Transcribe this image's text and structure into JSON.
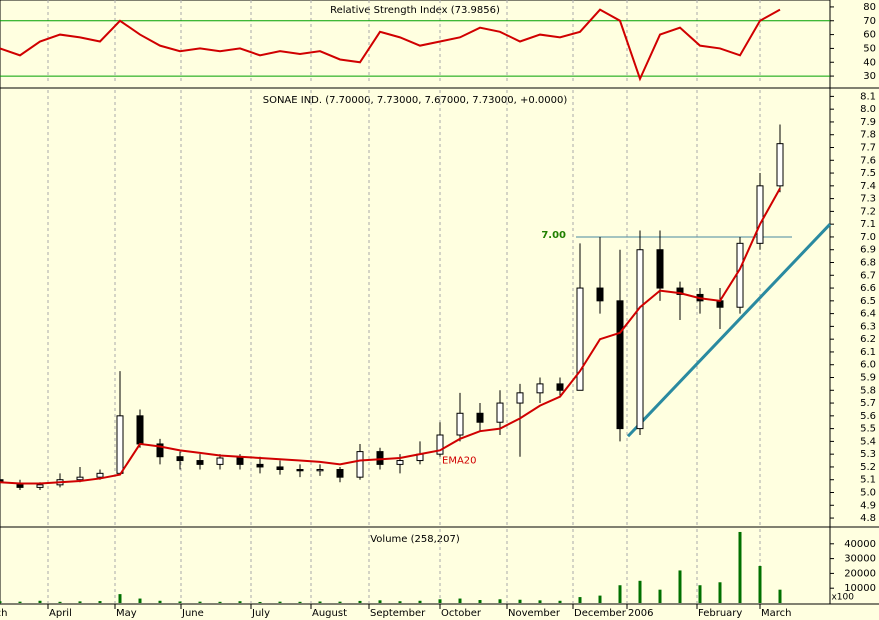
{
  "chart_data": [
    {
      "type": "line",
      "title": "Relative Strength Index (73.9856)",
      "x": [
        0,
        5,
        10,
        15,
        20,
        25,
        30,
        35,
        40,
        45,
        50,
        55,
        60,
        65,
        70,
        75,
        80,
        85,
        90,
        95,
        100,
        105,
        110,
        115,
        120,
        125,
        130,
        135,
        140,
        145,
        150,
        155,
        160,
        165,
        170,
        175,
        180,
        185,
        190,
        195
      ],
      "values": [
        50,
        45,
        55,
        60,
        58,
        55,
        70,
        60,
        52,
        48,
        50,
        48,
        50,
        45,
        48,
        46,
        48,
        42,
        40,
        62,
        58,
        52,
        55,
        58,
        65,
        62,
        55,
        60,
        58,
        62,
        78,
        70,
        28,
        60,
        65,
        52,
        50,
        45,
        70,
        78
      ],
      "color": "#d00000",
      "xlim": [
        0,
        207.5
      ],
      "ylim": [
        25,
        85
      ],
      "yticks": [
        30,
        40,
        50,
        60,
        70,
        80
      ],
      "hlines": [
        30,
        70
      ],
      "hline_color": "#00a000"
    },
    {
      "type": "candlestick",
      "title": "SONAE IND. (7.70000, 7.73000, 7.67000, 7.73000, +0.0000)",
      "x": [
        0,
        5,
        10,
        15,
        20,
        25,
        30,
        35,
        40,
        45,
        50,
        55,
        60,
        65,
        70,
        75,
        80,
        85,
        90,
        95,
        100,
        105,
        110,
        115,
        120,
        125,
        130,
        135,
        140,
        145,
        150,
        155,
        160,
        165,
        170,
        175,
        180,
        185,
        190,
        195
      ],
      "open": [
        5.1,
        5.07,
        5.04,
        5.06,
        5.1,
        5.12,
        5.15,
        5.6,
        5.38,
        5.28,
        5.25,
        5.22,
        5.27,
        5.22,
        5.2,
        5.18,
        5.17,
        5.18,
        5.12,
        5.32,
        5.22,
        5.25,
        5.3,
        5.45,
        5.62,
        5.55,
        5.7,
        5.78,
        5.85,
        5.8,
        6.6,
        6.5,
        5.5,
        6.9,
        6.6,
        6.55,
        6.5,
        6.45,
        6.95,
        7.4
      ],
      "high": [
        5.13,
        5.1,
        5.08,
        5.15,
        5.2,
        5.18,
        5.95,
        5.65,
        5.42,
        5.32,
        5.3,
        5.3,
        5.3,
        5.28,
        5.25,
        5.22,
        5.22,
        5.2,
        5.38,
        5.35,
        5.3,
        5.4,
        5.55,
        5.78,
        5.7,
        5.8,
        5.85,
        5.9,
        5.9,
        6.95,
        7.0,
        6.9,
        7.05,
        7.05,
        6.65,
        6.6,
        6.6,
        7.0,
        7.5,
        7.88
      ],
      "low": [
        5.05,
        5.02,
        5.02,
        5.04,
        5.08,
        5.1,
        5.15,
        5.35,
        5.22,
        5.18,
        5.18,
        5.18,
        5.18,
        5.15,
        5.14,
        5.12,
        5.13,
        5.08,
        5.1,
        5.18,
        5.15,
        5.22,
        5.28,
        5.4,
        5.48,
        5.45,
        5.28,
        5.7,
        5.75,
        5.8,
        6.4,
        5.4,
        5.45,
        6.5,
        6.35,
        6.4,
        6.28,
        6.4,
        6.9,
        7.35
      ],
      "close": [
        5.08,
        5.04,
        5.06,
        5.1,
        5.12,
        5.15,
        5.6,
        5.38,
        5.28,
        5.25,
        5.22,
        5.27,
        5.22,
        5.2,
        5.18,
        5.17,
        5.18,
        5.12,
        5.32,
        5.22,
        5.25,
        5.3,
        5.45,
        5.62,
        5.55,
        5.7,
        5.78,
        5.85,
        5.8,
        6.6,
        6.5,
        5.5,
        6.9,
        6.6,
        6.55,
        6.5,
        6.45,
        6.95,
        7.4,
        7.73
      ],
      "ema": {
        "label": "EMA20",
        "color": "#d00000",
        "values": [
          5.08,
          5.07,
          5.07,
          5.08,
          5.09,
          5.11,
          5.14,
          5.38,
          5.36,
          5.33,
          5.31,
          5.29,
          5.28,
          5.27,
          5.26,
          5.25,
          5.24,
          5.22,
          5.25,
          5.26,
          5.27,
          5.3,
          5.33,
          5.42,
          5.48,
          5.5,
          5.58,
          5.68,
          5.75,
          5.95,
          6.2,
          6.25,
          6.45,
          6.58,
          6.56,
          6.52,
          6.5,
          6.75,
          7.1,
          7.38
        ]
      },
      "hline": {
        "value": 7,
        "label": "7.00"
      },
      "trendline": {
        "x": [
          157,
          207.5
        ],
        "y": [
          5.44,
          7.1
        ],
        "color": "#2a8aa0"
      },
      "xlim": [
        0,
        207.5
      ],
      "ylim": [
        4.73,
        8.15
      ],
      "yticks": [
        4.8,
        4.9,
        {
          "value": 5,
          "label": "5.0"
        },
        5.1,
        5.2,
        5.3,
        5.4,
        5.5,
        5.6,
        5.7,
        5.8,
        5.9,
        {
          "value": 6,
          "label": "6.0"
        },
        6.1,
        6.2,
        6.3,
        6.4,
        6.5,
        6.6,
        6.7,
        6.8,
        6.9,
        {
          "value": 7,
          "label": "7.0"
        },
        7.1,
        7.2,
        7.3,
        7.4,
        7.5,
        7.6,
        7.7,
        7.8,
        7.9,
        {
          "value": 8,
          "label": "8.0"
        },
        8.1
      ]
    },
    {
      "type": "bar",
      "title": "Volume (258,207)",
      "x": [
        0,
        5,
        10,
        15,
        20,
        25,
        30,
        35,
        40,
        45,
        50,
        55,
        60,
        65,
        70,
        75,
        80,
        85,
        90,
        95,
        100,
        105,
        110,
        115,
        120,
        125,
        130,
        135,
        140,
        145,
        150,
        155,
        160,
        165,
        170,
        175,
        180,
        185,
        190,
        195
      ],
      "values": [
        1200,
        900,
        1500,
        800,
        1100,
        1300,
        6000,
        3000,
        1500,
        1000,
        900,
        800,
        1200,
        700,
        900,
        800,
        1000,
        900,
        1400,
        1800,
        1200,
        1500,
        2500,
        3000,
        2000,
        2500,
        2200,
        1800,
        1500,
        4000,
        5000,
        12000,
        15000,
        9000,
        22000,
        12000,
        14000,
        48000,
        25000,
        9000
      ],
      "color": "#007000",
      "unit_label": "x100",
      "xlim": [
        0,
        207.5
      ],
      "ylim": [
        0,
        50000
      ],
      "yticks": [
        10000,
        20000,
        30000,
        40000
      ],
      "xticks": [
        {
          "value": -6,
          "label": "March"
        },
        {
          "value": 12,
          "label": "April"
        },
        {
          "value": 28.75,
          "label": "May"
        },
        {
          "value": 45.25,
          "label": "June"
        },
        {
          "value": 62.75,
          "label": "July"
        },
        {
          "value": 77.75,
          "label": "August"
        },
        {
          "value": 92.25,
          "label": "September"
        },
        {
          "value": 110,
          "label": "October"
        },
        {
          "value": 126.75,
          "label": "November"
        },
        {
          "value": 143.25,
          "label": "December"
        },
        {
          "value": 156.75,
          "label": "2006"
        },
        {
          "value": 174.25,
          "label": "February"
        },
        {
          "value": 190,
          "label": "March"
        }
      ]
    }
  ]
}
